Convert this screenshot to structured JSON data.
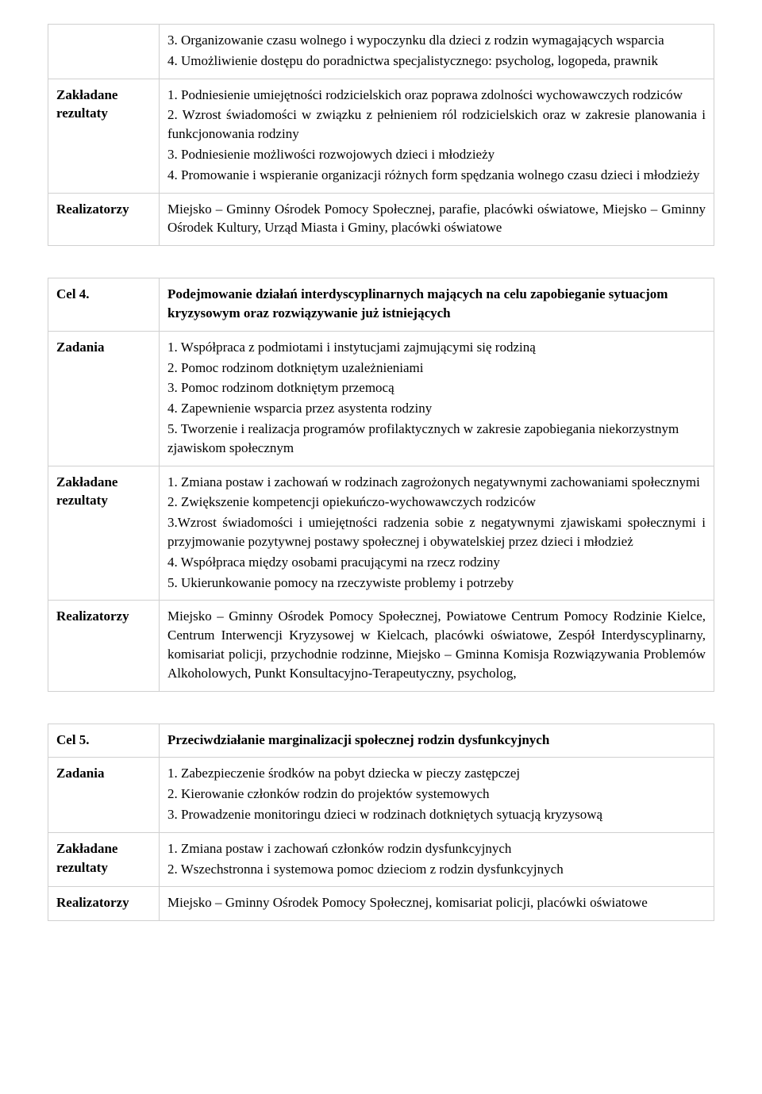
{
  "table1": {
    "row1": {
      "label": "",
      "content": "3. Organizowanie czasu wolnego i wypoczynku dla dzieci z rodzin wymagających wsparcia\n4. Umożliwienie dostępu do poradnictwa specjalistycznego: psycholog, logopeda, prawnik"
    },
    "row2": {
      "label": "Zakładane rezultaty",
      "content": "1. Podniesienie umiejętności rodzicielskich oraz poprawa zdolności wychowawczych rodziców\n2. Wzrost świadomości w związku z pełnieniem ról rodzicielskich oraz w zakresie planowania i funkcjonowania rodziny\n3. Podniesienie możliwości rozwojowych dzieci i młodzieży\n4. Promowanie i wspieranie organizacji różnych form spędzania wolnego czasu dzieci i młodzieży"
    },
    "row3": {
      "label": "Realizatorzy",
      "content": "Miejsko – Gminny Ośrodek Pomocy Społecznej, parafie, placówki oświatowe, Miejsko – Gminny Ośrodek Kultury, Urząd Miasta i Gminy, placówki oświatowe"
    }
  },
  "table2": {
    "row1": {
      "label": "Cel 4.",
      "content": "Podejmowanie działań interdyscyplinarnych mających na celu zapobieganie sytuacjom kryzysowym oraz rozwiązywanie już istniejących"
    },
    "row2": {
      "label": "Zadania",
      "content": "1. Współpraca z podmiotami i instytucjami zajmującymi się rodziną\n2. Pomoc rodzinom dotkniętym uzależnieniami\n3. Pomoc rodzinom dotkniętym przemocą\n4. Zapewnienie wsparcia przez asystenta rodziny\n5. Tworzenie i realizacja programów profilaktycznych w zakresie zapobiegania niekorzystnym zjawiskom społecznym"
    },
    "row3": {
      "label": "Zakładane rezultaty",
      "content": "1. Zmiana postaw i zachowań w rodzinach zagrożonych negatywnymi zachowaniami społecznymi\n2. Zwiększenie kompetencji opiekuńczo-wychowawczych rodziców\n3.Wzrost świadomości i umiejętności radzenia sobie z negatywnymi zjawiskami społecznymi i przyjmowanie pozytywnej postawy społecznej i obywatelskiej przez dzieci i młodzież\n4. Współpraca między osobami pracującymi na rzecz rodziny\n5. Ukierunkowanie pomocy na rzeczywiste problemy i potrzeby"
    },
    "row4": {
      "label": "Realizatorzy",
      "content": "Miejsko – Gminny Ośrodek Pomocy Społecznej, Powiatowe Centrum Pomocy Rodzinie Kielce, Centrum Interwencji Kryzysowej w Kielcach, placówki oświatowe, Zespół Interdyscyplinarny, komisariat policji, przychodnie rodzinne, Miejsko – Gminna Komisja Rozwiązywania Problemów Alkoholowych, Punkt Konsultacyjno-Terapeutyczny, psycholog,"
    }
  },
  "table3": {
    "row1": {
      "label": "Cel 5.",
      "content": "Przeciwdziałanie marginalizacji społecznej rodzin dysfunkcyjnych"
    },
    "row2": {
      "label": "Zadania",
      "content": "1. Zabezpieczenie środków na pobyt dziecka w pieczy zastępczej\n2. Kierowanie członków rodzin do projektów systemowych\n3. Prowadzenie monitoringu dzieci w rodzinach dotkniętych sytuacją kryzysową"
    },
    "row3": {
      "label": "Zakładane rezultaty",
      "content": "1. Zmiana postaw i zachowań członków rodzin dysfunkcyjnych\n2. Wszechstronna i systemowa pomoc dzieciom z rodzin dysfunkcyjnych"
    },
    "row4": {
      "label": "Realizatorzy",
      "content": "Miejsko – Gminny Ośrodek Pomocy Społecznej, komisariat policji, placówki oświatowe"
    }
  }
}
